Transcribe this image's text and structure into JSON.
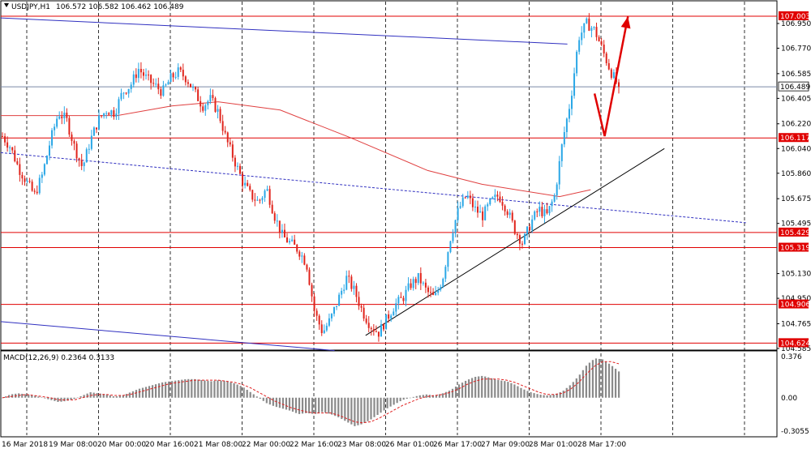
{
  "header": {
    "symbol": "USDJPY,H1",
    "ohlc": "106.572 106.582 106.462 106.489"
  },
  "chart_data": {
    "type": "candlestick",
    "symbol": "USDJPY",
    "timeframe": "H1",
    "ylim": [
      104.585,
      107.05
    ],
    "grid": true,
    "price_ticks": [
      "106.950",
      "106.770",
      "106.585",
      "106.405",
      "106.220",
      "106.040",
      "105.860",
      "105.675",
      "105.495",
      "105.130",
      "104.950",
      "104.765",
      "104.585"
    ],
    "time_labels": [
      "16 Mar 2018",
      "19 Mar 08:00",
      "20 Mar 00:00",
      "20 Mar 16:00",
      "21 Mar 08:00",
      "22 Mar 00:00",
      "22 Mar 16:00",
      "23 Mar 08:00",
      "26 Mar 01:00",
      "26 Mar 17:00",
      "27 Mar 09:00",
      "28 Mar 01:00",
      "28 Mar 17:00"
    ],
    "horizontal_levels": [
      {
        "value": 107.003,
        "label": "107.003",
        "color": "#e00000"
      },
      {
        "value": 106.117,
        "label": "106.117",
        "color": "#e00000"
      },
      {
        "value": 105.429,
        "label": "105.429",
        "color": "#e00000"
      },
      {
        "value": 105.319,
        "label": "105.319",
        "color": "#e00000"
      },
      {
        "value": 104.906,
        "label": "104.906",
        "color": "#e00000"
      },
      {
        "value": 104.624,
        "label": "104.624",
        "color": "#e00000"
      }
    ],
    "current_price": {
      "value": 106.489,
      "label": "106.489",
      "color": "#7a8aa8"
    },
    "price_path": [
      106.13,
      106.05,
      105.9,
      105.8,
      105.7,
      105.85,
      106.1,
      106.3,
      106.25,
      106.05,
      105.9,
      106.1,
      106.25,
      106.32,
      106.3,
      106.45,
      106.5,
      106.62,
      106.55,
      106.5,
      106.45,
      106.55,
      106.6,
      106.55,
      106.45,
      106.35,
      106.4,
      106.3,
      106.1,
      105.95,
      105.8,
      105.7,
      105.65,
      105.75,
      105.55,
      105.4,
      105.35,
      105.3,
      105.2,
      104.85,
      104.7,
      104.8,
      104.95,
      105.1,
      105.0,
      104.85,
      104.75,
      104.7,
      104.8,
      104.9,
      104.95,
      105.05,
      105.1,
      105.0,
      104.95,
      105.1,
      105.4,
      105.6,
      105.7,
      105.6,
      105.55,
      105.65,
      105.7,
      105.6,
      105.45,
      105.35,
      105.5,
      105.6,
      105.55,
      105.7,
      106.1,
      106.4,
      106.85,
      106.95,
      106.9,
      106.75,
      106.6,
      106.49
    ],
    "moving_average": [
      {
        "x": 0,
        "y": 106.28
      },
      {
        "x": 0.15,
        "y": 106.28
      },
      {
        "x": 0.22,
        "y": 106.35
      },
      {
        "x": 0.28,
        "y": 106.38
      },
      {
        "x": 0.36,
        "y": 106.32
      },
      {
        "x": 0.45,
        "y": 106.12
      },
      {
        "x": 0.55,
        "y": 105.88
      },
      {
        "x": 0.62,
        "y": 105.78
      },
      {
        "x": 0.72,
        "y": 105.69
      },
      {
        "x": 0.76,
        "y": 105.74
      }
    ],
    "trend_lines": [
      {
        "from": [
          0.0,
          106.99
        ],
        "to": [
          0.73,
          106.8
        ],
        "color": "#3030c0",
        "dash": false
      },
      {
        "from": [
          0.0,
          104.78
        ],
        "to": [
          0.43,
          104.57
        ],
        "color": "#3030c0",
        "dash": false
      },
      {
        "from": [
          0.0,
          106.01
        ],
        "to": [
          0.96,
          105.5
        ],
        "color": "#3030c0",
        "dash": true
      },
      {
        "from": [
          0.47,
          104.68
        ],
        "to": [
          0.855,
          106.04
        ],
        "color": "#000000",
        "dash": false
      }
    ],
    "forecast_arrow": {
      "points": [
        [
          0.765,
          106.44
        ],
        [
          0.778,
          106.13
        ],
        [
          0.808,
          107.0
        ]
      ],
      "color": "#e00000"
    },
    "macd": {
      "label": "MACD(12,26,9) 0.2364 0.3133",
      "ylim": [
        -0.3055,
        0.376
      ],
      "ticks": [
        "0.376",
        "0.00",
        "-0.3055"
      ],
      "histogram": [
        0.0,
        0.03,
        0.04,
        0.03,
        0.02,
        0.0,
        -0.02,
        -0.04,
        -0.03,
        -0.01,
        0.02,
        0.05,
        0.04,
        0.03,
        0.01,
        0.02,
        0.05,
        0.08,
        0.1,
        0.12,
        0.14,
        0.15,
        0.16,
        0.17,
        0.17,
        0.16,
        0.15,
        0.16,
        0.15,
        0.13,
        0.1,
        0.05,
        0.0,
        -0.05,
        -0.08,
        -0.1,
        -0.12,
        -0.15,
        -0.14,
        -0.15,
        -0.13,
        -0.15,
        -0.18,
        -0.22,
        -0.26,
        -0.24,
        -0.2,
        -0.15,
        -0.1,
        -0.06,
        -0.02,
        0.0,
        0.02,
        0.03,
        0.02,
        0.04,
        0.07,
        0.12,
        0.16,
        0.19,
        0.2,
        0.18,
        0.16,
        0.15,
        0.12,
        0.08,
        0.05,
        0.03,
        0.02,
        0.03,
        0.06,
        0.12,
        0.2,
        0.3,
        0.36,
        0.35,
        0.3,
        0.24
      ],
      "signal": [
        0.0,
        0.01,
        0.02,
        0.03,
        0.02,
        0.01,
        0.0,
        -0.02,
        -0.02,
        -0.02,
        0.0,
        0.02,
        0.03,
        0.03,
        0.02,
        0.02,
        0.03,
        0.05,
        0.07,
        0.09,
        0.11,
        0.13,
        0.14,
        0.15,
        0.16,
        0.16,
        0.16,
        0.16,
        0.15,
        0.14,
        0.12,
        0.09,
        0.05,
        0.01,
        -0.03,
        -0.06,
        -0.09,
        -0.11,
        -0.13,
        -0.14,
        -0.14,
        -0.14,
        -0.16,
        -0.19,
        -0.22,
        -0.23,
        -0.22,
        -0.19,
        -0.15,
        -0.11,
        -0.07,
        -0.04,
        -0.01,
        0.01,
        0.02,
        0.03,
        0.05,
        0.08,
        0.12,
        0.15,
        0.17,
        0.17,
        0.17,
        0.16,
        0.14,
        0.11,
        0.08,
        0.05,
        0.03,
        0.03,
        0.04,
        0.08,
        0.14,
        0.22,
        0.29,
        0.33,
        0.33,
        0.31
      ]
    }
  }
}
